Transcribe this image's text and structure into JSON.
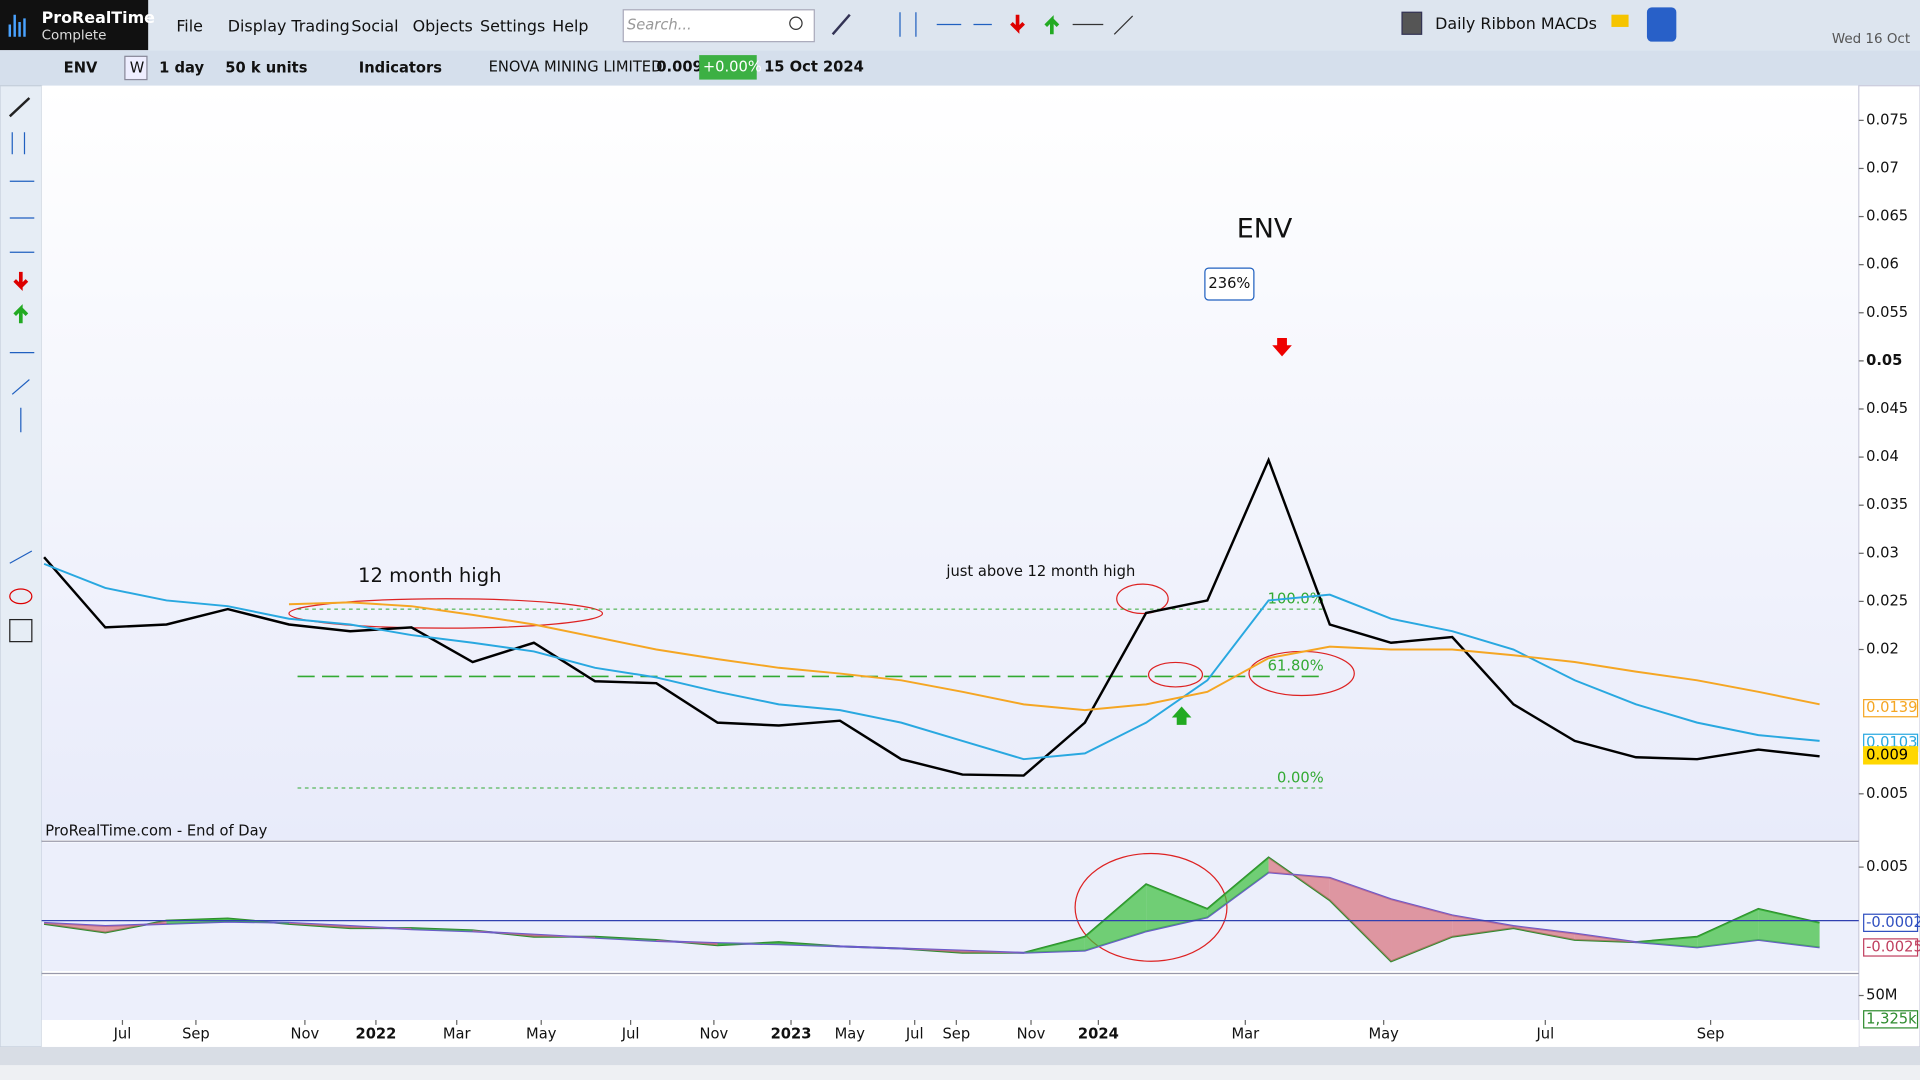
{
  "app": {
    "brand": "ProRealTime",
    "edition": "Complete",
    "menu": [
      "File",
      "Display",
      "Trading",
      "Social",
      "Objects",
      "Settings",
      "Help"
    ],
    "search_placeholder": "Search...",
    "layout_name": "Daily Ribbon MACDs",
    "date": "Wed 16 Oct"
  },
  "instrument_bar": {
    "ticker": "ENV",
    "weekly": "W",
    "timeframe": "1 day",
    "units": "50 k units",
    "indicators": "Indicators",
    "name": "ENOVA MINING LIMITED",
    "price": "0.009",
    "change": "+0.00%",
    "date": "15 Oct 2024"
  },
  "chart_data": [
    {
      "type": "line",
      "title": "ENV",
      "gain_label": "236%",
      "annotations": [
        "12 month high",
        "just above 12 month high"
      ],
      "source": "ProRealTime.com - End of Day",
      "categories": [
        null,
        null,
        null,
        null,
        null,
        null,
        null,
        null,
        null,
        null,
        null,
        null,
        null,
        null,
        null,
        null,
        null,
        null,
        null,
        null,
        null,
        null,
        null,
        null,
        null,
        null,
        null,
        null,
        null,
        null
      ],
      "date_labels": [
        "Jul",
        "Sep",
        "Nov",
        "2022",
        "Mar",
        "May",
        "Jul",
        "Nov",
        "2023",
        "May",
        "Jul",
        "Sep",
        "Nov",
        "2024",
        "Mar",
        "May",
        "Jul",
        "Sep"
      ],
      "series": [
        {
          "color": "#000000",
          "values": [
            0.0296,
            0.0223,
            0.0226,
            0.0242,
            0.0226,
            0.0219,
            0.0223,
            0.0187,
            0.0207,
            0.0167,
            0.0165,
            0.0124,
            0.0121,
            0.0126,
            0.0086,
            0.007,
            0.0069,
            0.0124,
            0.0238,
            0.0251,
            0.0397,
            0.0226,
            0.0207,
            0.0213,
            0.0143,
            0.0105,
            0.0088,
            0.0086,
            0.0096,
            0.0089
          ]
        },
        {
          "color": "#29a8e0",
          "values": [
            0.0289,
            0.0264,
            0.0251,
            0.0245,
            0.0232,
            0.0226,
            0.0215,
            0.0207,
            0.0198,
            0.0181,
            0.0171,
            0.0156,
            0.0143,
            0.0137,
            0.0124,
            0.0105,
            0.0086,
            0.0092,
            0.0124,
            0.0168,
            0.0251,
            0.0257,
            0.0232,
            0.0219,
            0.02,
            0.0168,
            0.0143,
            0.0124,
            0.0111,
            0.0105
          ]
        },
        {
          "color": "#f5a623",
          "values": [
            null,
            null,
            null,
            null,
            0.0247,
            0.0249,
            0.0245,
            0.0236,
            0.0226,
            0.0213,
            0.02,
            0.019,
            0.0181,
            0.0175,
            0.0168,
            0.0156,
            0.0143,
            0.0137,
            0.0143,
            0.0156,
            0.0191,
            0.0203,
            0.02,
            0.02,
            0.0194,
            0.0187,
            0.0177,
            0.0168,
            0.0156,
            0.0143
          ]
        }
      ],
      "fib_levels": [
        {
          "value": 0.0242,
          "label": "100.0%"
        },
        {
          "value": 0.0172,
          "label": "61.80%"
        },
        {
          "value": 0.0056,
          "label": "0.00%"
        }
      ],
      "price_tags": [
        {
          "value": 0.0139,
          "color": "#f5a623"
        },
        {
          "value": 0.0103,
          "color": "#29a8e0"
        },
        {
          "value": 0.009,
          "color": "#ffd700"
        }
      ],
      "ylim": [
        0.0002,
        0.0786
      ],
      "yticks": [
        0.075,
        0.07,
        0.065,
        0.06,
        0.055,
        0.05,
        0.045,
        0.04,
        0.035,
        0.03,
        0.025,
        0.02,
        0.005
      ]
    },
    {
      "type": "line",
      "categories": [
        null,
        null,
        null,
        null,
        null,
        null,
        null,
        null,
        null,
        null,
        null,
        null,
        null,
        null,
        null,
        null,
        null,
        null,
        null,
        null,
        null,
        null,
        null,
        null,
        null,
        null,
        null,
        null,
        null,
        null
      ],
      "series": [
        {
          "color": "#2e8b2e",
          "values": [
            -0.0003,
            -0.0011,
            0,
            0.0002,
            -0.0003,
            -0.0007,
            -0.0007,
            -0.0009,
            -0.0015,
            -0.0015,
            -0.0018,
            -0.0023,
            -0.002,
            -0.0024,
            -0.0026,
            -0.003,
            -0.003,
            -0.0015,
            0.0034,
            0.0011,
            0.0059,
            0.0019,
            -0.0038,
            -0.0015,
            -0.0007,
            -0.0018,
            -0.002,
            -0.0015,
            0.0011,
            -0.0002
          ]
        },
        {
          "color": "#6a5acd",
          "values": [
            -0.0002,
            -0.0005,
            -0.0003,
            -0.0001,
            -0.0002,
            -0.0005,
            -0.0008,
            -0.001,
            -0.0013,
            -0.0016,
            -0.0019,
            -0.0021,
            -0.0022,
            -0.0024,
            -0.0026,
            -0.0028,
            -0.003,
            -0.0028,
            -0.001,
            0.0003,
            0.0045,
            0.004,
            0.002,
            0.0005,
            -0.0005,
            -0.0012,
            -0.002,
            -0.0025,
            -0.0018,
            -0.0025
          ]
        }
      ],
      "price_tags": [
        {
          "value": -0.0002,
          "color": "#3050c0"
        },
        {
          "value": -0.0025,
          "color": "#c04060"
        }
      ],
      "ylim": [
        -0.0047,
        0.0073
      ],
      "yticks": [
        0.005
      ]
    },
    {
      "type": "bar",
      "ylim": [
        0,
        90000000
      ],
      "yticks": [
        {
          "value": 50000000,
          "label": "50M"
        }
      ],
      "price_tags": [
        {
          "value": 1325000,
          "label": "1,325k",
          "color": "#2e8b2e"
        }
      ]
    }
  ]
}
